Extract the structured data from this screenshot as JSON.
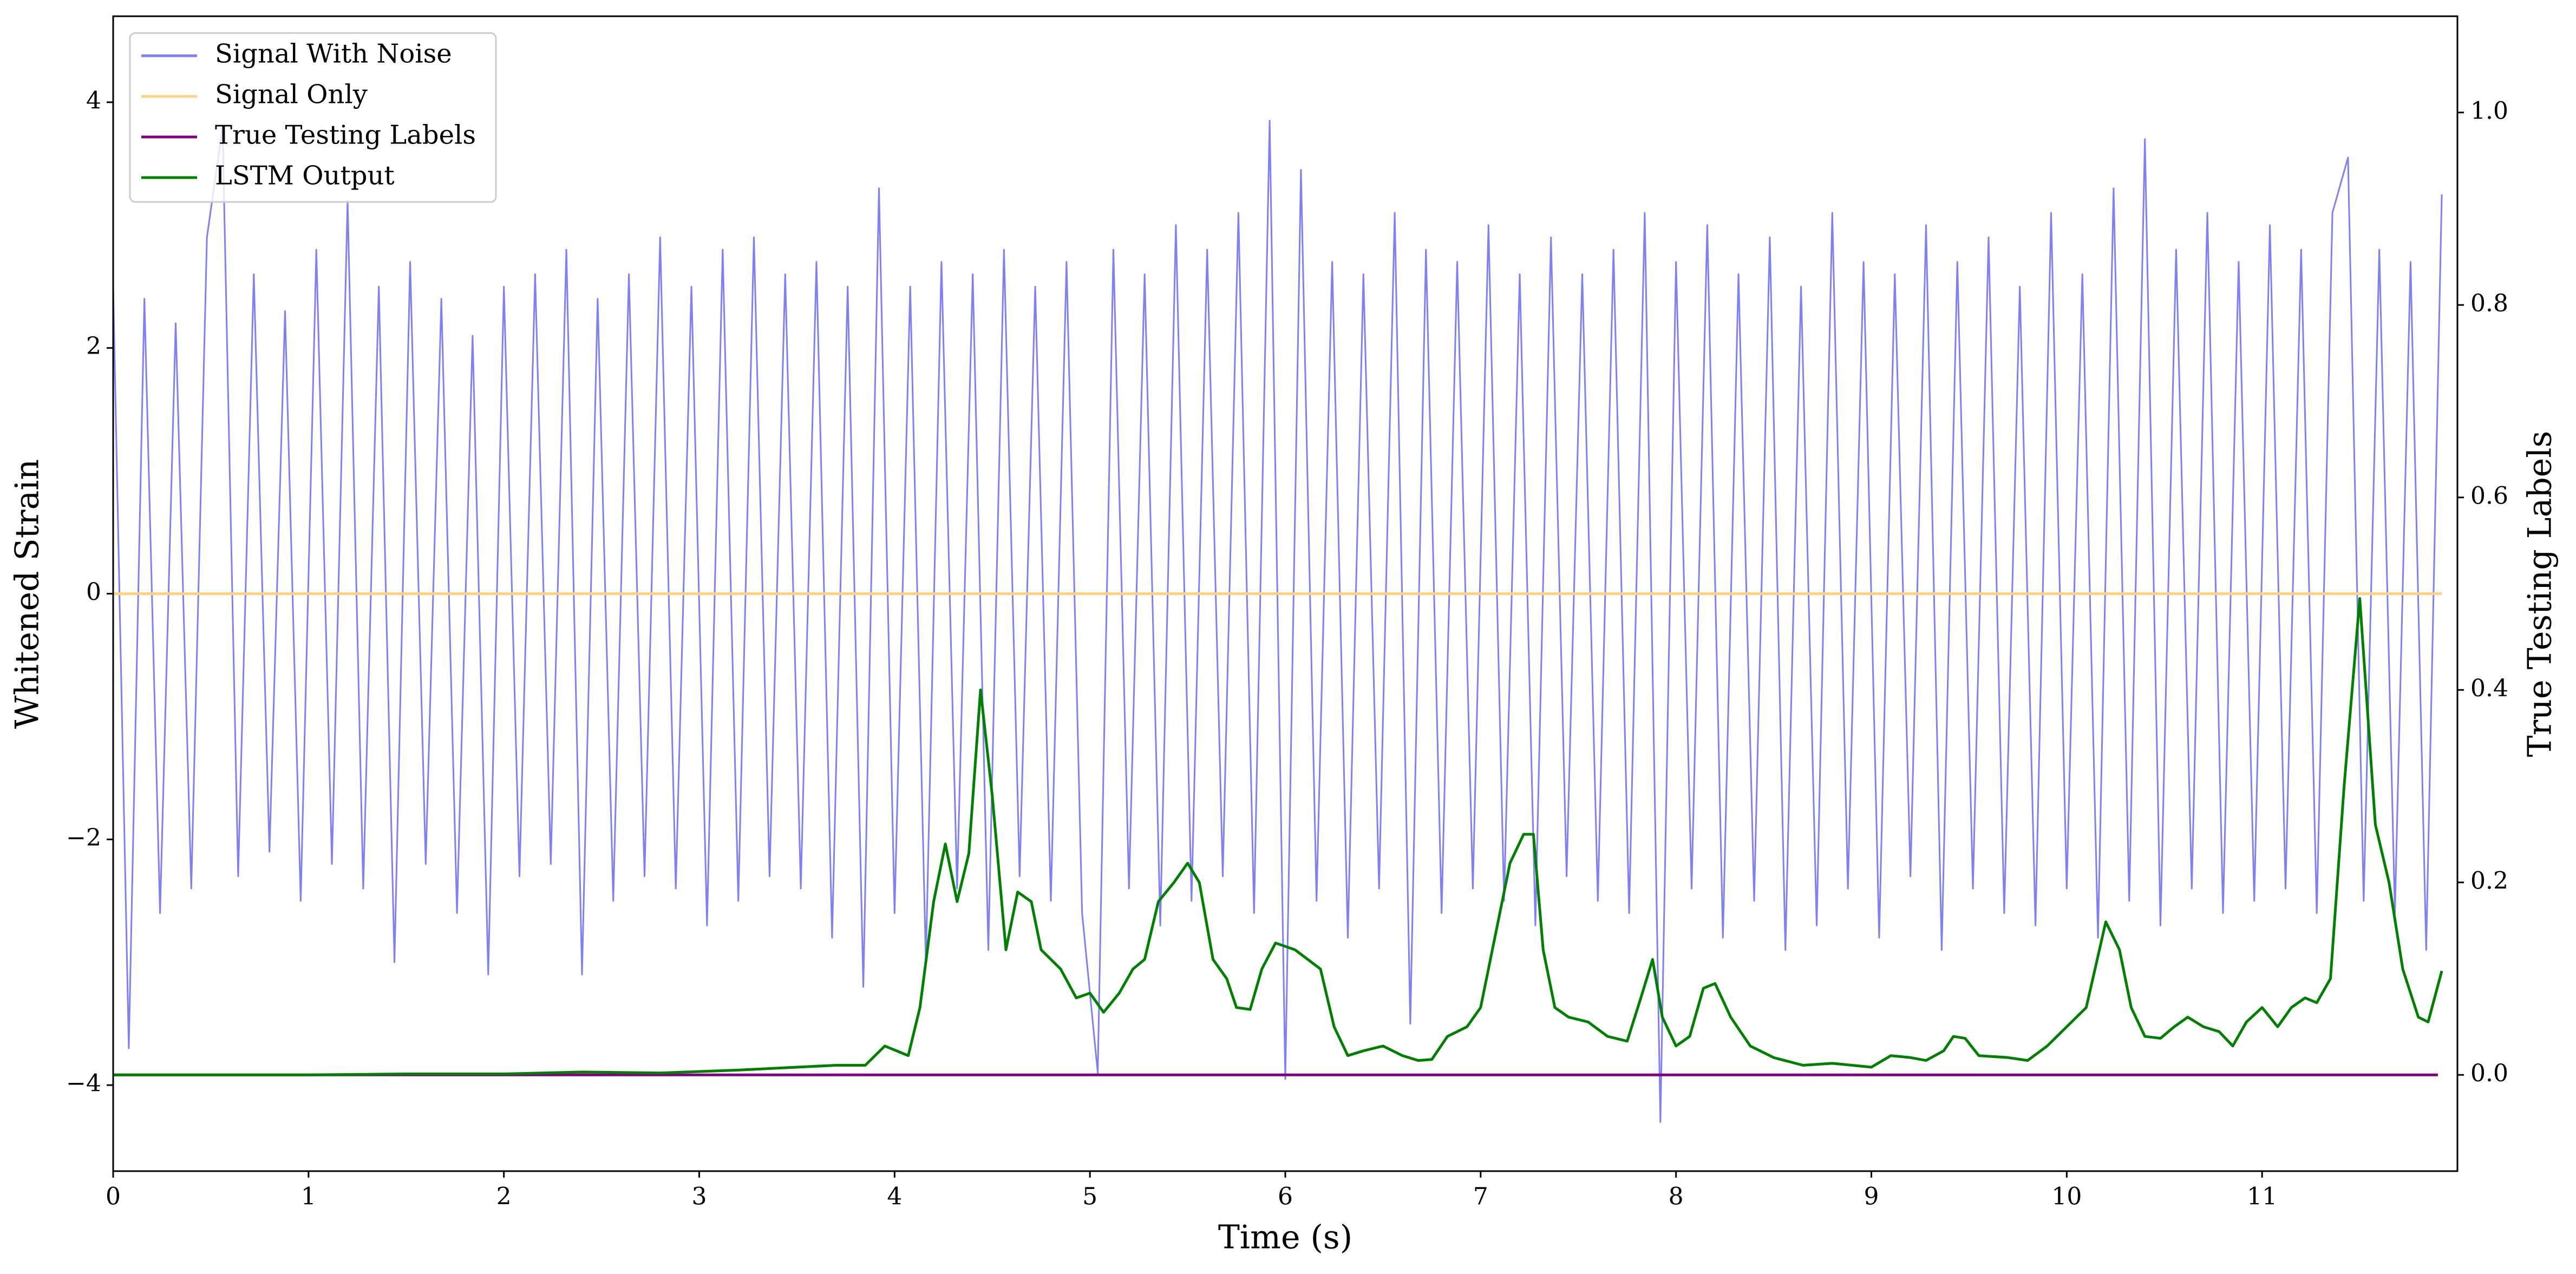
{
  "chart_data": {
    "type": "line",
    "xlabel": "Time (s)",
    "ylabel": "Whitened Strain",
    "y2label": "True Testing Labels",
    "xlim": [
      0,
      12
    ],
    "ylim": [
      -4.7,
      4.7
    ],
    "y2lim": [
      -0.1,
      1.1
    ],
    "xticks": [
      0,
      1,
      2,
      3,
      4,
      5,
      6,
      7,
      8,
      9,
      10,
      11
    ],
    "yticks": [
      {
        "value": -4,
        "label": "−4"
      },
      {
        "value": -2,
        "label": "−2"
      },
      0,
      2,
      4
    ],
    "y2ticks": [
      {
        "value": 0,
        "label": "0.0"
      },
      {
        "value": 0.2,
        "label": "0.2"
      },
      {
        "value": 0.4,
        "label": "0.4"
      },
      {
        "value": 0.6,
        "label": "0.6"
      },
      {
        "value": 0.8,
        "label": "0.8"
      },
      {
        "value": 1.0,
        "label": "1.0"
      }
    ],
    "legend": "upper left",
    "series": [
      {
        "name": "Signal With Noise",
        "color": "#7f7ff7",
        "x": [
          0,
          0.08,
          0.16,
          0.24,
          0.32,
          0.4,
          0.48,
          0.56,
          0.64,
          0.72,
          0.8,
          0.88,
          0.96,
          1.04,
          1.12,
          1.2,
          1.28,
          1.36,
          1.44,
          1.52,
          1.6,
          1.68,
          1.76,
          1.84,
          1.92,
          2,
          2.08,
          2.16,
          2.24,
          2.32,
          2.4,
          2.48,
          2.56,
          2.64,
          2.72,
          2.8,
          2.88,
          2.96,
          3.04,
          3.12,
          3.2,
          3.28,
          3.36,
          3.44,
          3.52,
          3.6,
          3.68,
          3.76,
          3.84,
          3.92,
          4,
          4.08,
          4.16,
          4.24,
          4.32,
          4.4,
          4.48,
          4.56,
          4.64,
          4.72,
          4.8,
          4.88,
          4.96,
          5.04,
          5.12,
          5.2,
          5.28,
          5.36,
          5.44,
          5.52,
          5.6,
          5.68,
          5.76,
          5.84,
          5.92,
          6,
          6.08,
          6.16,
          6.24,
          6.32,
          6.4,
          6.48,
          6.56,
          6.64,
          6.72,
          6.8,
          6.88,
          6.96,
          7.04,
          7.12,
          7.2,
          7.28,
          7.36,
          7.44,
          7.52,
          7.6,
          7.68,
          7.76,
          7.84,
          7.92,
          8,
          8.08,
          8.16,
          8.24,
          8.32,
          8.4,
          8.48,
          8.56,
          8.64,
          8.72,
          8.8,
          8.88,
          8.96,
          9.04,
          9.12,
          9.2,
          9.28,
          9.36,
          9.44,
          9.52,
          9.6,
          9.68,
          9.76,
          9.84,
          9.92,
          10,
          10.08,
          10.16,
          10.24,
          10.32,
          10.4,
          10.48,
          10.56,
          10.64,
          10.72,
          10.8,
          10.88,
          10.96,
          11.04,
          11.12,
          11.2,
          11.28,
          11.36,
          11.44,
          11.52,
          11.6,
          11.68,
          11.76,
          11.84,
          11.92
        ],
        "values": [
          2.5,
          -3.7,
          2.4,
          -2.6,
          2.2,
          -2.4,
          2.9,
          3.8,
          -2.3,
          2.6,
          -2.1,
          2.3,
          -2.5,
          2.8,
          -2.2,
          3.2,
          -2.4,
          2.5,
          -3.0,
          2.7,
          -2.2,
          2.4,
          -2.6,
          2.1,
          -3.1,
          2.5,
          -2.3,
          2.6,
          -2.2,
          2.8,
          -3.1,
          2.4,
          -2.5,
          2.6,
          -2.3,
          2.9,
          -2.4,
          2.5,
          -2.7,
          2.8,
          -2.5,
          2.9,
          -2.3,
          2.6,
          -2.4,
          2.7,
          -2.8,
          2.5,
          -3.2,
          3.3,
          -2.6,
          2.5,
          -3.0,
          2.7,
          -2.4,
          2.6,
          -2.9,
          2.8,
          -2.3,
          2.5,
          -2.5,
          2.7,
          -2.6,
          -3.9,
          2.8,
          -2.4,
          2.6,
          -2.7,
          3.0,
          -2.5,
          2.8,
          -2.3,
          3.1,
          -2.6,
          3.85,
          -3.95,
          3.45,
          -2.5,
          2.7,
          -2.8,
          2.6,
          -2.4,
          3.1,
          -3.5,
          2.8,
          -2.6,
          2.7,
          -2.4,
          3.0,
          -2.5,
          2.6,
          -2.7,
          2.9,
          -2.3,
          2.6,
          -2.5,
          2.8,
          -2.6,
          3.1,
          -4.3,
          2.7,
          -2.4,
          3.0,
          -2.8,
          2.6,
          -2.5,
          2.9,
          -2.9,
          2.5,
          -2.7,
          3.1,
          -2.4,
          2.7,
          -2.8,
          2.6,
          -2.3,
          3.0,
          -2.9,
          2.7,
          -2.4,
          2.9,
          -2.6,
          2.5,
          -2.7,
          3.1,
          -2.4,
          2.6,
          -2.8,
          3.3,
          -2.5,
          3.7,
          -2.7,
          2.8,
          -2.4,
          3.1,
          -2.6,
          2.7,
          -2.5,
          3.0,
          -2.4,
          2.8,
          -2.6,
          3.1,
          3.55,
          -2.5,
          2.8,
          -2.6,
          2.7,
          -2.9,
          3.25
        ]
      },
      {
        "name": "Signal Only",
        "color": "#ffd27f",
        "x": [
          0,
          11.92
        ],
        "values": [
          0,
          0
        ]
      },
      {
        "name": "True Testing Labels",
        "color": "#800080",
        "axis": "y2",
        "x": [
          0,
          11.9
        ],
        "values": [
          0,
          0
        ]
      },
      {
        "name": "LSTM Output",
        "color": "#008000",
        "axis": "y2",
        "x": [
          0,
          1.0,
          1.5,
          2.0,
          2.4,
          2.8,
          3.2,
          3.4,
          3.7,
          3.85,
          3.95,
          4.07,
          4.13,
          4.2,
          4.26,
          4.32,
          4.38,
          4.44,
          4.5,
          4.57,
          4.63,
          4.7,
          4.75,
          4.85,
          4.93,
          5.0,
          5.07,
          5.15,
          5.22,
          5.28,
          5.35,
          5.43,
          5.5,
          5.56,
          5.63,
          5.7,
          5.75,
          5.82,
          5.88,
          5.95,
          6.05,
          6.18,
          6.25,
          6.32,
          6.4,
          6.5,
          6.6,
          6.68,
          6.75,
          6.83,
          6.93,
          7.0,
          7.08,
          7.15,
          7.22,
          7.27,
          7.32,
          7.38,
          7.45,
          7.55,
          7.65,
          7.75,
          7.82,
          7.88,
          7.93,
          8.0,
          8.07,
          8.14,
          8.2,
          8.28,
          8.38,
          8.5,
          8.65,
          8.8,
          9.0,
          9.1,
          9.2,
          9.28,
          9.37,
          9.42,
          9.48,
          9.55,
          9.7,
          9.8,
          9.9,
          10.0,
          10.1,
          10.2,
          10.27,
          10.33,
          10.4,
          10.48,
          10.55,
          10.62,
          10.7,
          10.78,
          10.85,
          10.92,
          11.0,
          11.08,
          11.15,
          11.22,
          11.28,
          11.35,
          11.42,
          11.5,
          11.58,
          11.65,
          11.72,
          11.8,
          11.85,
          11.92
        ],
        "values": [
          0,
          0,
          0.001,
          0.001,
          0.003,
          0.002,
          0.005,
          0.007,
          0.01,
          0.01,
          0.03,
          0.02,
          0.07,
          0.18,
          0.24,
          0.18,
          0.23,
          0.4,
          0.29,
          0.13,
          0.19,
          0.18,
          0.13,
          0.11,
          0.08,
          0.085,
          0.065,
          0.085,
          0.11,
          0.12,
          0.18,
          0.2,
          0.22,
          0.2,
          0.12,
          0.1,
          0.07,
          0.068,
          0.11,
          0.137,
          0.13,
          0.11,
          0.05,
          0.02,
          0.025,
          0.03,
          0.02,
          0.015,
          0.016,
          0.04,
          0.05,
          0.07,
          0.15,
          0.22,
          0.25,
          0.25,
          0.13,
          0.07,
          0.06,
          0.055,
          0.04,
          0.035,
          0.08,
          0.12,
          0.06,
          0.03,
          0.04,
          0.09,
          0.095,
          0.06,
          0.03,
          0.018,
          0.01,
          0.012,
          0.008,
          0.02,
          0.018,
          0.015,
          0.025,
          0.04,
          0.038,
          0.02,
          0.018,
          0.015,
          0.03,
          0.05,
          0.07,
          0.159,
          0.13,
          0.07,
          0.04,
          0.038,
          0.05,
          0.06,
          0.05,
          0.045,
          0.03,
          0.055,
          0.07,
          0.05,
          0.07,
          0.08,
          0.075,
          0.1,
          0.3,
          0.495,
          0.26,
          0.2,
          0.11,
          0.06,
          0.055,
          0.108
        ]
      }
    ]
  }
}
